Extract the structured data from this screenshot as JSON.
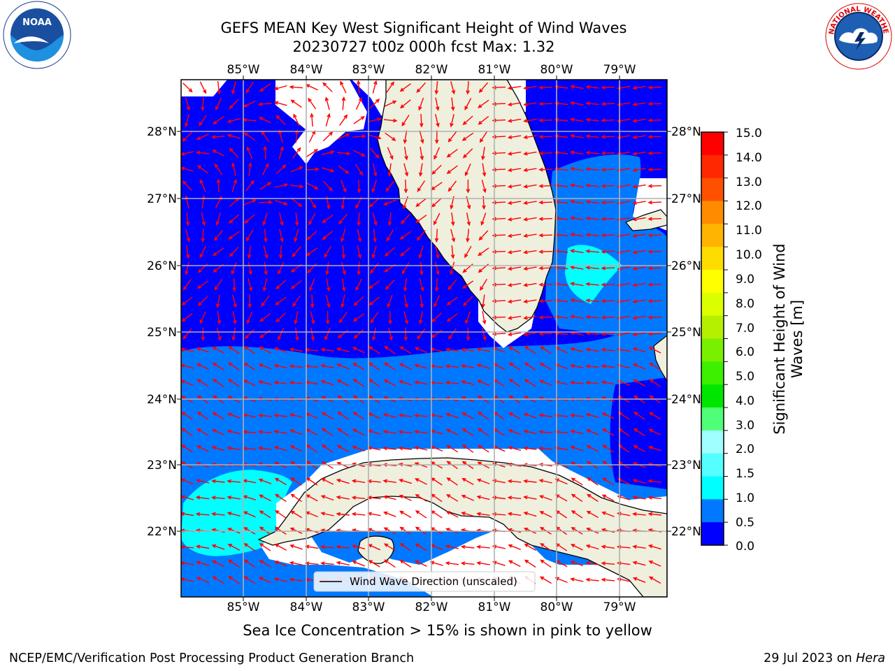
{
  "header": {
    "title_line1": "GEFS MEAN Key West Significant Height of Wind Waves",
    "title_line2": "20230727 t00z 000h fcst   Max: 1.32"
  },
  "logos": {
    "left": {
      "name": "noaa-logo",
      "text": "NOAA",
      "ring_text": "NATIONAL OCEANIC AND ATMOSPHERIC ADMINISTRATION · U.S. DEPARTMENT OF COMMERCE"
    },
    "right": {
      "name": "nws-logo",
      "ring_text": "NATIONAL WEATHER SERVICE"
    }
  },
  "map": {
    "lon_labels": [
      "85°W",
      "84°W",
      "83°W",
      "82°W",
      "81°W",
      "80°W",
      "79°W"
    ],
    "lat_labels": [
      "28°N",
      "27°N",
      "26°N",
      "25°N",
      "24°N",
      "23°N",
      "22°N"
    ],
    "legend_label": "Wind Wave Direction (unscaled)",
    "land_color": "#efefde",
    "arrow_color": "#ff0000"
  },
  "colorbar": {
    "title": "Significant Height of Wind Waves [m]",
    "ticks": [
      "15.0",
      "14.0",
      "13.0",
      "12.0",
      "11.0",
      "10.0",
      "9.0",
      "8.0",
      "7.0",
      "6.0",
      "5.0",
      "4.0",
      "3.0",
      "2.0",
      "1.5",
      "1.0",
      "0.5",
      "0.0"
    ],
    "colors_top_to_bottom": [
      "#ff0000",
      "#ff2800",
      "#ff5000",
      "#ff8c00",
      "#ffb400",
      "#ffdc00",
      "#ffff00",
      "#dcff00",
      "#b4f000",
      "#78f000",
      "#3cf000",
      "#00e600",
      "#50ff78",
      "#a0ffff",
      "#55ffff",
      "#00ffff",
      "#0078ff",
      "#0000ff"
    ]
  },
  "caption": "Sea Ice Concentration > 15% is shown in pink to yellow",
  "footer": {
    "left": "NCEP/EMC/Verification Post Processing Product Generation Branch",
    "right_date": "29 Jul 2023 on",
    "right_host": "Hera"
  }
}
